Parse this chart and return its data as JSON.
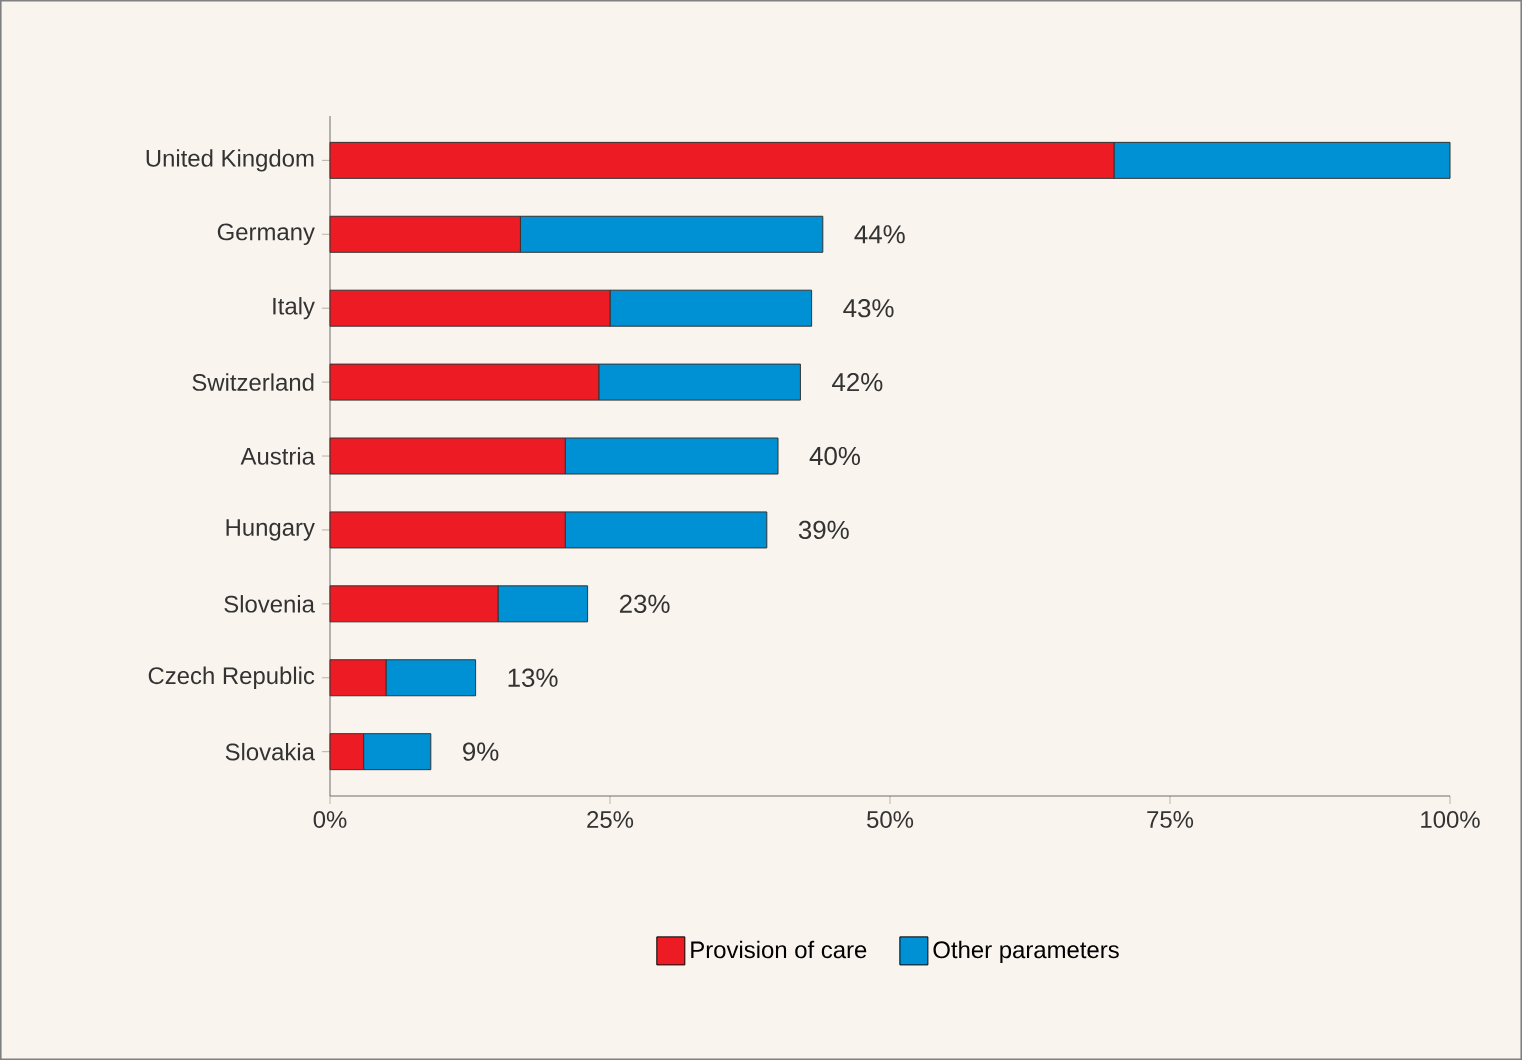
{
  "chart_data": {
    "type": "bar",
    "orientation": "horizontal",
    "stacked": true,
    "categories": [
      "United Kingdom",
      "Germany",
      "Italy",
      "Switzerland",
      "Austria",
      "Hungary",
      "Slovenia",
      "Czech Republic",
      "Slovakia"
    ],
    "series": [
      {
        "name": "Provision of care",
        "color": "#ed1c24",
        "values": [
          70,
          17,
          25,
          24,
          21,
          21,
          15,
          5,
          3
        ]
      },
      {
        "name": "Other parameters",
        "color": "#0091d5",
        "values": [
          30,
          27,
          18,
          18,
          19,
          18,
          8,
          8,
          6
        ]
      }
    ],
    "totals": [
      null,
      "44%",
      "43%",
      "42%",
      "40%",
      "39%",
      "23%",
      "13%",
      "9%"
    ],
    "xlim": [
      0,
      100
    ],
    "xticks": [
      {
        "value": 0,
        "label": "0%"
      },
      {
        "value": 25,
        "label": "25%"
      },
      {
        "value": 50,
        "label": "50%"
      },
      {
        "value": 75,
        "label": "75%"
      },
      {
        "value": 100,
        "label": "100%"
      }
    ],
    "grid": false,
    "legend": "bottom"
  }
}
